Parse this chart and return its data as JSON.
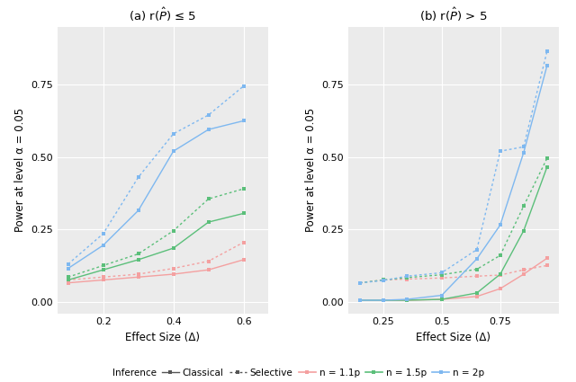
{
  "panel_a": {
    "title": "(a) r($\\hat{P}$) ≤ 5",
    "xlabel": "Effect Size (Δ)",
    "ylabel": "Power at level α = 0.05",
    "xlim": [
      0.07,
      0.67
    ],
    "ylim": [
      -0.04,
      0.95
    ],
    "xticks": [
      0.2,
      0.4,
      0.6
    ],
    "yticks": [
      0.0,
      0.25,
      0.5,
      0.75
    ],
    "x": [
      0.1,
      0.2,
      0.3,
      0.4,
      0.5,
      0.6
    ],
    "series": {
      "n11p_classical": [
        0.065,
        0.075,
        0.085,
        0.095,
        0.11,
        0.145
      ],
      "n11p_selective": [
        0.075,
        0.085,
        0.095,
        0.115,
        0.14,
        0.205
      ],
      "n15p_classical": [
        0.075,
        0.11,
        0.145,
        0.185,
        0.275,
        0.305
      ],
      "n15p_selective": [
        0.085,
        0.125,
        0.165,
        0.245,
        0.355,
        0.39
      ],
      "n2p_classical": [
        0.115,
        0.195,
        0.315,
        0.52,
        0.595,
        0.625
      ],
      "n2p_selective": [
        0.13,
        0.235,
        0.43,
        0.58,
        0.645,
        0.745
      ]
    }
  },
  "panel_b": {
    "title": "(b) r($\\hat{P}$) > 5",
    "xlabel": "Effect Size (Δ)",
    "ylabel": "Power at level α = 0.05",
    "xlim": [
      0.1,
      1.0
    ],
    "ylim": [
      -0.04,
      0.95
    ],
    "xticks": [
      0.25,
      0.5,
      0.75
    ],
    "yticks": [
      0.0,
      0.25,
      0.5,
      0.75
    ],
    "x": [
      0.15,
      0.25,
      0.35,
      0.5,
      0.65,
      0.75,
      0.85,
      0.95
    ],
    "series": {
      "n11p_classical": [
        0.005,
        0.005,
        0.005,
        0.008,
        0.018,
        0.045,
        0.095,
        0.15
      ],
      "n11p_selective": [
        0.065,
        0.075,
        0.078,
        0.082,
        0.088,
        0.092,
        0.11,
        0.125
      ],
      "n15p_classical": [
        0.005,
        0.005,
        0.005,
        0.008,
        0.03,
        0.095,
        0.245,
        0.465
      ],
      "n15p_selective": [
        0.065,
        0.075,
        0.083,
        0.093,
        0.112,
        0.16,
        0.33,
        0.495
      ],
      "n2p_classical": [
        0.005,
        0.005,
        0.008,
        0.022,
        0.148,
        0.265,
        0.515,
        0.815
      ],
      "n2p_selective": [
        0.065,
        0.073,
        0.088,
        0.1,
        0.18,
        0.52,
        0.535,
        0.865
      ]
    }
  },
  "colors": {
    "n11p": "#F4A0A0",
    "n15p": "#5BBF7A",
    "n2p": "#7EB8F0"
  },
  "background_color": "#EBEBEB",
  "grid_color": "#FFFFFF",
  "fig_background": "#FFFFFF"
}
